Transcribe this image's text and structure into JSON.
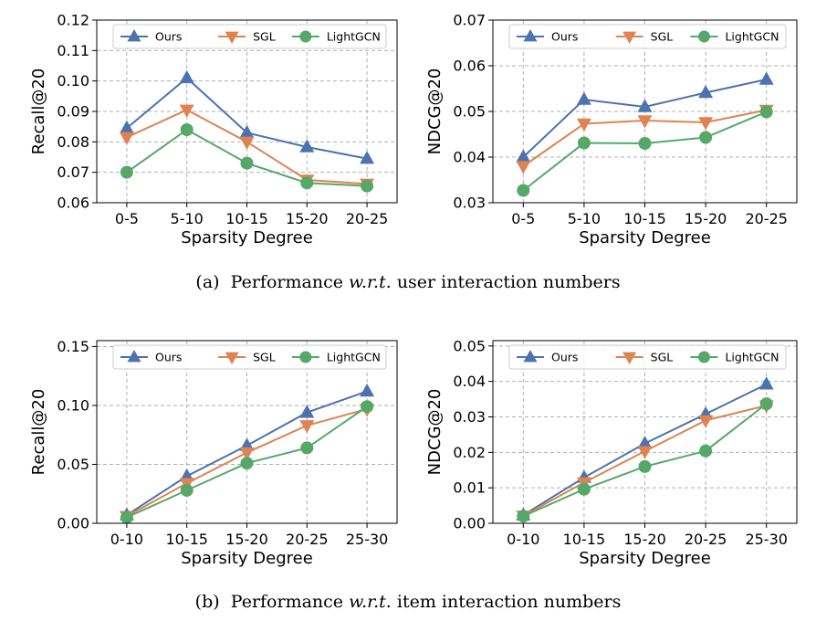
{
  "captions": [
    {
      "label": "(a)",
      "pre": "Performance",
      "italic": "w.r.t.",
      "post": "user interaction numbers"
    },
    {
      "label": "(b)",
      "pre": "Performance",
      "italic": "w.r.t.",
      "post": "item interaction numbers"
    }
  ],
  "chart_data": [
    {
      "type": "line",
      "panel": "a-left",
      "xlabel": "Sparsity Degree",
      "ylabel": "Recall@20",
      "categories": [
        "0-5",
        "5-10",
        "10-15",
        "15-20",
        "20-25"
      ],
      "ylim": [
        0.06,
        0.12
      ],
      "yticks": [
        0.06,
        0.07,
        0.08,
        0.09,
        0.1,
        0.11,
        0.12
      ],
      "ytick_labels": [
        "0.06",
        "0.07",
        "0.08",
        "0.09",
        "0.10",
        "0.11",
        "0.12"
      ],
      "grid": true,
      "legend": "top",
      "series": [
        {
          "name": "Ours",
          "color": "#4c72b0",
          "marker": "triangle-up",
          "values": [
            0.0845,
            0.101,
            0.083,
            0.0783,
            0.0745
          ]
        },
        {
          "name": "SGL",
          "color": "#dd8452",
          "marker": "triangle-down",
          "values": [
            0.0815,
            0.0905,
            0.08,
            0.0675,
            0.0662
          ]
        },
        {
          "name": "LightGCN",
          "color": "#55a868",
          "marker": "circle",
          "values": [
            0.07,
            0.084,
            0.073,
            0.0665,
            0.0655
          ]
        }
      ]
    },
    {
      "type": "line",
      "panel": "a-right",
      "xlabel": "Sparsity Degree",
      "ylabel": "NDCG@20",
      "categories": [
        "0-5",
        "5-10",
        "10-15",
        "15-20",
        "20-25"
      ],
      "ylim": [
        0.03,
        0.07
      ],
      "yticks": [
        0.03,
        0.04,
        0.05,
        0.06,
        0.07
      ],
      "ytick_labels": [
        "0.03",
        "0.04",
        "0.05",
        "0.06",
        "0.07"
      ],
      "grid": true,
      "legend": "top",
      "series": [
        {
          "name": "Ours",
          "color": "#4c72b0",
          "marker": "triangle-up",
          "values": [
            0.04,
            0.0526,
            0.051,
            0.0541,
            0.057
          ]
        },
        {
          "name": "SGL",
          "color": "#dd8452",
          "marker": "triangle-down",
          "values": [
            0.038,
            0.0473,
            0.048,
            0.0476,
            0.0503
          ]
        },
        {
          "name": "LightGCN",
          "color": "#55a868",
          "marker": "circle",
          "values": [
            0.0327,
            0.0431,
            0.043,
            0.0443,
            0.0499
          ]
        }
      ]
    },
    {
      "type": "line",
      "panel": "b-left",
      "xlabel": "Sparsity Degree",
      "ylabel": "Recall@20",
      "categories": [
        "0-10",
        "10-15",
        "15-20",
        "20-25",
        "25-30"
      ],
      "ylim": [
        0.0,
        0.155
      ],
      "yticks": [
        0.0,
        0.05,
        0.1,
        0.15
      ],
      "ytick_labels": [
        "0.00",
        "0.05",
        "0.10",
        "0.15"
      ],
      "grid": true,
      "legend": "top",
      "series": [
        {
          "name": "Ours",
          "color": "#4c72b0",
          "marker": "triangle-up",
          "values": [
            0.007,
            0.04,
            0.066,
            0.094,
            0.112
          ]
        },
        {
          "name": "SGL",
          "color": "#dd8452",
          "marker": "triangle-down",
          "values": [
            0.006,
            0.034,
            0.06,
            0.083,
            0.097
          ]
        },
        {
          "name": "LightGCN",
          "color": "#55a868",
          "marker": "circle",
          "values": [
            0.005,
            0.028,
            0.051,
            0.064,
            0.099
          ]
        }
      ]
    },
    {
      "type": "line",
      "panel": "b-right",
      "xlabel": "Sparsity Degree",
      "ylabel": "NDCG@20",
      "categories": [
        "0-10",
        "10-15",
        "15-20",
        "20-25",
        "25-30"
      ],
      "ylim": [
        0.0,
        0.0515
      ],
      "yticks": [
        0.0,
        0.01,
        0.02,
        0.03,
        0.04,
        0.05
      ],
      "ytick_labels": [
        "0.00",
        "0.01",
        "0.02",
        "0.03",
        "0.04",
        "0.05"
      ],
      "grid": true,
      "legend": "top",
      "series": [
        {
          "name": "Ours",
          "color": "#4c72b0",
          "marker": "triangle-up",
          "values": [
            0.0023,
            0.0129,
            0.0225,
            0.0308,
            0.0392
          ]
        },
        {
          "name": "SGL",
          "color": "#dd8452",
          "marker": "triangle-down",
          "values": [
            0.0021,
            0.0115,
            0.0203,
            0.029,
            0.0332
          ]
        },
        {
          "name": "LightGCN",
          "color": "#55a868",
          "marker": "circle",
          "values": [
            0.002,
            0.0096,
            0.016,
            0.0204,
            0.0337
          ]
        }
      ]
    }
  ]
}
